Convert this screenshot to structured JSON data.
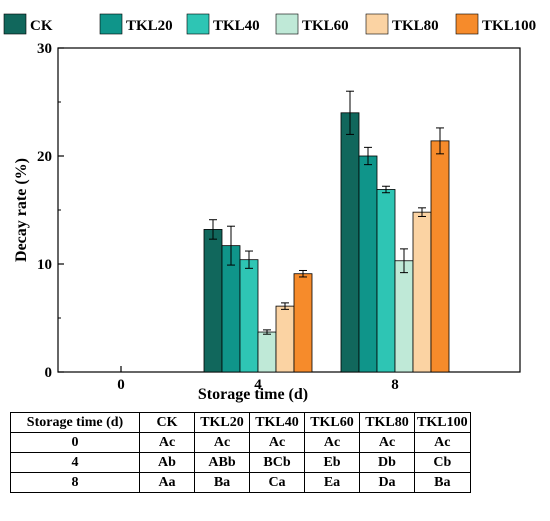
{
  "chart_data": {
    "type": "bar",
    "xlabel": "Storage time (d)",
    "ylabel": "Decay rate (%)",
    "ylim": [
      0,
      30
    ],
    "yticks": [
      0,
      10,
      20,
      30
    ],
    "categories": [
      "0",
      "4",
      "8"
    ],
    "legend_position": "top",
    "series": [
      {
        "name": "CK",
        "color": "#11675c",
        "values": [
          0,
          13.2,
          24.0
        ],
        "errors": [
          0,
          0.9,
          2.0
        ]
      },
      {
        "name": "TKL20",
        "color": "#0f958a",
        "values": [
          0,
          11.7,
          20.0
        ],
        "errors": [
          0,
          1.8,
          0.8
        ]
      },
      {
        "name": "TKL40",
        "color": "#2ec5b4",
        "values": [
          0,
          10.4,
          16.9
        ],
        "errors": [
          0,
          0.8,
          0.3
        ]
      },
      {
        "name": "TKL60",
        "color": "#bfe9d7",
        "values": [
          0,
          3.7,
          10.3
        ],
        "errors": [
          0,
          0.2,
          1.1
        ]
      },
      {
        "name": "TKL80",
        "color": "#fbd3a3",
        "values": [
          0,
          6.1,
          14.8
        ],
        "errors": [
          0,
          0.3,
          0.4
        ]
      },
      {
        "name": "TKL100",
        "color": "#f68b2b",
        "values": [
          0,
          9.1,
          21.4
        ],
        "errors": [
          0,
          0.3,
          1.2
        ]
      }
    ]
  },
  "table": {
    "header": [
      "Storage time (d)",
      "CK",
      "TKL20",
      "TKL40",
      "TKL60",
      "TKL80",
      "TKL100"
    ],
    "rows": [
      [
        "0",
        "Ac",
        "Ac",
        "Ac",
        "Ac",
        "Ac",
        "Ac"
      ],
      [
        "4",
        "Ab",
        "ABb",
        "BCb",
        "Eb",
        "Db",
        "Cb"
      ],
      [
        "8",
        "Aa",
        "Ba",
        "Ca",
        "Ea",
        "Da",
        "Ba"
      ]
    ]
  }
}
